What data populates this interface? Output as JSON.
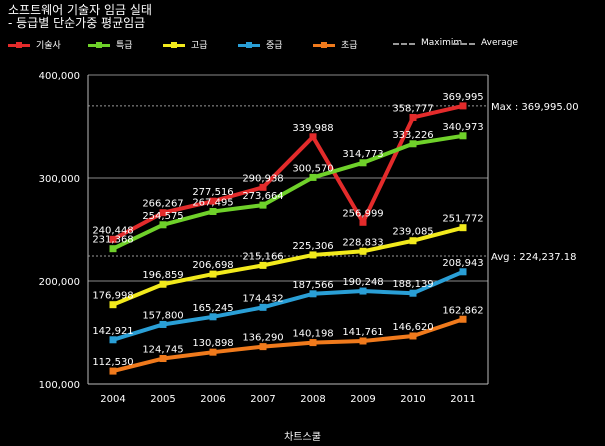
{
  "title_line1": "소프트웨어 기술자 임금 실태",
  "title_line2": " - 등급별 단순가중 평균임금",
  "legend": [
    {
      "label": "기술사",
      "color": "#e32b2b",
      "kind": "series"
    },
    {
      "label": "특급",
      "color": "#6fd12a",
      "kind": "series"
    },
    {
      "label": "고급",
      "color": "#f2ea1c",
      "kind": "series"
    },
    {
      "label": "중급",
      "color": "#2a9fd6",
      "kind": "series"
    },
    {
      "label": "초급",
      "color": "#f07a1c",
      "kind": "series"
    },
    {
      "label": "Maximim",
      "color": "#999999",
      "kind": "dash"
    },
    {
      "label": "Average",
      "color": "#999999",
      "kind": "dash"
    }
  ],
  "chart_data": {
    "type": "line",
    "xlabel": "차트스쿨",
    "ylabel": "",
    "ylim": [
      100000,
      400000
    ],
    "yticks": [
      "100,000",
      "200,000",
      "300,000",
      "400,000"
    ],
    "grid": true,
    "legend_position": "top",
    "categories": [
      "2004",
      "2005",
      "2006",
      "2007",
      "2008",
      "2009",
      "2010",
      "2011"
    ],
    "series": [
      {
        "name": "기술사",
        "color": "#e32b2b",
        "values": [
          240448,
          266267,
          277516,
          290938,
          339988,
          256999,
          358777,
          369995
        ],
        "labels": [
          "240,448",
          "266,267",
          "277,516",
          "290,938",
          "339,988",
          "256,999",
          "358,777",
          "369,995"
        ]
      },
      {
        "name": "특급",
        "color": "#6fd12a",
        "values": [
          231368,
          254575,
          267495,
          273664,
          300570,
          314773,
          333226,
          340973
        ],
        "labels": [
          "231,368",
          "254,575",
          "267,495",
          "273,664",
          "300,570",
          "314,773",
          "333,226",
          "340,973"
        ]
      },
      {
        "name": "고급",
        "color": "#f2ea1c",
        "values": [
          176998,
          196859,
          206698,
          215166,
          225306,
          228833,
          239085,
          251772
        ],
        "labels": [
          "176,998",
          "196,859",
          "206,698",
          "215,166",
          "225,306",
          "228,833",
          "239,085",
          "251,772"
        ]
      },
      {
        "name": "중급",
        "color": "#2a9fd6",
        "values": [
          142921,
          157800,
          165245,
          174432,
          187566,
          190248,
          188139,
          208943
        ],
        "labels": [
          "142,921",
          "157,800",
          "165,245",
          "174,432",
          "187,566",
          "190,248",
          "188,139",
          "208,943"
        ]
      },
      {
        "name": "초급",
        "color": "#f07a1c",
        "values": [
          112530,
          124745,
          130898,
          136290,
          140198,
          141761,
          146620,
          162862
        ],
        "labels": [
          "112,530",
          "124,745",
          "130,898",
          "136,290",
          "140,198",
          "141,761",
          "146,620",
          "162,862"
        ]
      }
    ],
    "reference_lines": [
      {
        "name": "Maximim",
        "value": 369995,
        "label": "Max : 369,995.00"
      },
      {
        "name": "Average",
        "value": 224237.18,
        "label": "Avg : 224,237.18"
      }
    ]
  }
}
